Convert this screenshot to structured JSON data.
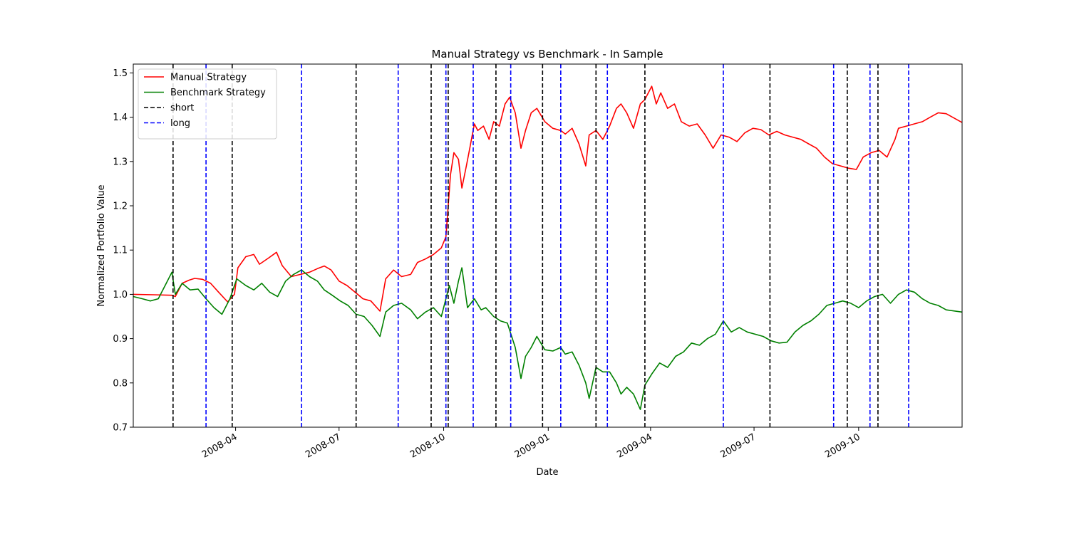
{
  "chart_data": {
    "type": "line",
    "title": "Manual Strategy vs Benchmark - In Sample",
    "xlabel": "Date",
    "ylabel": "Normalized Portfolio Value",
    "xlim": [
      "2008-01-02",
      "2009-12-31"
    ],
    "ylim": [
      0.7,
      1.52
    ],
    "grid": false,
    "legend_position": "top-left",
    "x_ticks": [
      "2008-04",
      "2008-07",
      "2008-10",
      "2009-01",
      "2009-04",
      "2009-07",
      "2009-10"
    ],
    "y_ticks": [
      "0.7",
      "0.8",
      "0.9",
      "1.0",
      "1.1",
      "1.2",
      "1.3",
      "1.4",
      "1.5"
    ],
    "series": [
      {
        "name": "Manual Strategy",
        "color": "#ff0000",
        "style": "solid",
        "points": [
          [
            "2008-01-02",
            1.0
          ],
          [
            "2008-01-20",
            0.999
          ],
          [
            "2008-02-05",
            0.998
          ],
          [
            "2008-02-08",
            0.995
          ],
          [
            "2008-02-14",
            1.025
          ],
          [
            "2008-02-20",
            1.032
          ],
          [
            "2008-02-25",
            1.036
          ],
          [
            "2008-03-03",
            1.034
          ],
          [
            "2008-03-10",
            1.025
          ],
          [
            "2008-03-17",
            1.005
          ],
          [
            "2008-03-25",
            0.983
          ],
          [
            "2008-03-31",
            1.0
          ],
          [
            "2008-04-03",
            1.06
          ],
          [
            "2008-04-10",
            1.085
          ],
          [
            "2008-04-17",
            1.09
          ],
          [
            "2008-04-22",
            1.068
          ],
          [
            "2008-04-30",
            1.082
          ],
          [
            "2008-05-07",
            1.095
          ],
          [
            "2008-05-12",
            1.065
          ],
          [
            "2008-05-20",
            1.04
          ],
          [
            "2008-05-28",
            1.045
          ],
          [
            "2008-06-05",
            1.05
          ],
          [
            "2008-06-12",
            1.058
          ],
          [
            "2008-06-18",
            1.064
          ],
          [
            "2008-06-24",
            1.055
          ],
          [
            "2008-07-01",
            1.03
          ],
          [
            "2008-07-08",
            1.02
          ],
          [
            "2008-07-15",
            1.005
          ],
          [
            "2008-07-22",
            0.99
          ],
          [
            "2008-07-29",
            0.985
          ],
          [
            "2008-08-06",
            0.962
          ],
          [
            "2008-08-11",
            1.035
          ],
          [
            "2008-08-18",
            1.055
          ],
          [
            "2008-08-25",
            1.04
          ],
          [
            "2008-09-02",
            1.045
          ],
          [
            "2008-09-08",
            1.072
          ],
          [
            "2008-09-15",
            1.08
          ],
          [
            "2008-09-22",
            1.09
          ],
          [
            "2008-09-29",
            1.105
          ],
          [
            "2008-10-03",
            1.13
          ],
          [
            "2008-10-07",
            1.27
          ],
          [
            "2008-10-10",
            1.32
          ],
          [
            "2008-10-14",
            1.305
          ],
          [
            "2008-10-17",
            1.24
          ],
          [
            "2008-10-21",
            1.29
          ],
          [
            "2008-10-24",
            1.33
          ],
          [
            "2008-10-28",
            1.385
          ],
          [
            "2008-10-31",
            1.37
          ],
          [
            "2008-11-05",
            1.38
          ],
          [
            "2008-11-10",
            1.35
          ],
          [
            "2008-11-14",
            1.39
          ],
          [
            "2008-11-19",
            1.38
          ],
          [
            "2008-11-24",
            1.43
          ],
          [
            "2008-11-28",
            1.445
          ],
          [
            "2008-12-03",
            1.41
          ],
          [
            "2008-12-08",
            1.33
          ],
          [
            "2008-12-12",
            1.37
          ],
          [
            "2008-12-17",
            1.41
          ],
          [
            "2008-12-22",
            1.42
          ],
          [
            "2008-12-29",
            1.39
          ],
          [
            "2009-01-05",
            1.375
          ],
          [
            "2009-01-12",
            1.37
          ],
          [
            "2009-01-16",
            1.362
          ],
          [
            "2009-01-22",
            1.375
          ],
          [
            "2009-01-28",
            1.34
          ],
          [
            "2009-02-03",
            1.29
          ],
          [
            "2009-02-06",
            1.36
          ],
          [
            "2009-02-12",
            1.37
          ],
          [
            "2009-02-18",
            1.35
          ],
          [
            "2009-02-24",
            1.38
          ],
          [
            "2009-03-02",
            1.42
          ],
          [
            "2009-03-06",
            1.43
          ],
          [
            "2009-03-11",
            1.41
          ],
          [
            "2009-03-17",
            1.375
          ],
          [
            "2009-03-23",
            1.43
          ],
          [
            "2009-03-27",
            1.44
          ],
          [
            "2009-04-02",
            1.47
          ],
          [
            "2009-04-06",
            1.43
          ],
          [
            "2009-04-10",
            1.455
          ],
          [
            "2009-04-16",
            1.42
          ],
          [
            "2009-04-22",
            1.43
          ],
          [
            "2009-04-28",
            1.39
          ],
          [
            "2009-05-05",
            1.38
          ],
          [
            "2009-05-12",
            1.385
          ],
          [
            "2009-05-19",
            1.36
          ],
          [
            "2009-05-26",
            1.33
          ],
          [
            "2009-06-02",
            1.36
          ],
          [
            "2009-06-09",
            1.355
          ],
          [
            "2009-06-16",
            1.345
          ],
          [
            "2009-06-23",
            1.365
          ],
          [
            "2009-06-30",
            1.375
          ],
          [
            "2009-07-07",
            1.372
          ],
          [
            "2009-07-14",
            1.36
          ],
          [
            "2009-07-21",
            1.368
          ],
          [
            "2009-07-28",
            1.36
          ],
          [
            "2009-08-04",
            1.355
          ],
          [
            "2009-08-11",
            1.35
          ],
          [
            "2009-08-18",
            1.34
          ],
          [
            "2009-08-25",
            1.33
          ],
          [
            "2009-09-01",
            1.31
          ],
          [
            "2009-09-08",
            1.295
          ],
          [
            "2009-09-15",
            1.29
          ],
          [
            "2009-09-22",
            1.285
          ],
          [
            "2009-09-29",
            1.282
          ],
          [
            "2009-10-05",
            1.31
          ],
          [
            "2009-10-12",
            1.32
          ],
          [
            "2009-10-19",
            1.325
          ],
          [
            "2009-10-26",
            1.31
          ],
          [
            "2009-11-02",
            1.35
          ],
          [
            "2009-11-05",
            1.375
          ],
          [
            "2009-11-12",
            1.38
          ],
          [
            "2009-11-19",
            1.385
          ],
          [
            "2009-11-26",
            1.39
          ],
          [
            "2009-12-03",
            1.4
          ],
          [
            "2009-12-10",
            1.41
          ],
          [
            "2009-12-17",
            1.408
          ],
          [
            "2009-12-31",
            1.388
          ]
        ]
      },
      {
        "name": "Benchmark Strategy",
        "color": "#008000",
        "style": "solid",
        "points": [
          [
            "2008-01-02",
            0.995
          ],
          [
            "2008-01-10",
            0.99
          ],
          [
            "2008-01-17",
            0.985
          ],
          [
            "2008-01-24",
            0.99
          ],
          [
            "2008-01-31",
            1.025
          ],
          [
            "2008-02-05",
            1.05
          ],
          [
            "2008-02-08",
            1.0
          ],
          [
            "2008-02-14",
            1.025
          ],
          [
            "2008-02-21",
            1.01
          ],
          [
            "2008-02-28",
            1.012
          ],
          [
            "2008-03-06",
            0.99
          ],
          [
            "2008-03-13",
            0.97
          ],
          [
            "2008-03-20",
            0.955
          ],
          [
            "2008-03-27",
            0.99
          ],
          [
            "2008-04-02",
            1.035
          ],
          [
            "2008-04-10",
            1.02
          ],
          [
            "2008-04-17",
            1.01
          ],
          [
            "2008-04-24",
            1.025
          ],
          [
            "2008-05-01",
            1.005
          ],
          [
            "2008-05-08",
            0.995
          ],
          [
            "2008-05-15",
            1.03
          ],
          [
            "2008-05-22",
            1.045
          ],
          [
            "2008-05-29",
            1.055
          ],
          [
            "2008-06-05",
            1.04
          ],
          [
            "2008-06-12",
            1.03
          ],
          [
            "2008-06-18",
            1.01
          ],
          [
            "2008-06-25",
            0.998
          ],
          [
            "2008-07-02",
            0.985
          ],
          [
            "2008-07-09",
            0.975
          ],
          [
            "2008-07-16",
            0.955
          ],
          [
            "2008-07-23",
            0.95
          ],
          [
            "2008-07-30",
            0.93
          ],
          [
            "2008-08-06",
            0.905
          ],
          [
            "2008-08-11",
            0.96
          ],
          [
            "2008-08-18",
            0.975
          ],
          [
            "2008-08-25",
            0.98
          ],
          [
            "2008-09-02",
            0.965
          ],
          [
            "2008-09-08",
            0.945
          ],
          [
            "2008-09-15",
            0.96
          ],
          [
            "2008-09-22",
            0.97
          ],
          [
            "2008-09-29",
            0.95
          ],
          [
            "2008-10-06",
            1.02
          ],
          [
            "2008-10-10",
            0.98
          ],
          [
            "2008-10-14",
            1.03
          ],
          [
            "2008-10-17",
            1.06
          ],
          [
            "2008-10-22",
            0.97
          ],
          [
            "2008-10-28",
            0.99
          ],
          [
            "2008-11-03",
            0.965
          ],
          [
            "2008-11-07",
            0.97
          ],
          [
            "2008-11-14",
            0.95
          ],
          [
            "2008-11-20",
            0.94
          ],
          [
            "2008-11-26",
            0.935
          ],
          [
            "2008-12-03",
            0.88
          ],
          [
            "2008-12-08",
            0.81
          ],
          [
            "2008-12-12",
            0.86
          ],
          [
            "2008-12-17",
            0.88
          ],
          [
            "2008-12-22",
            0.905
          ],
          [
            "2008-12-29",
            0.875
          ],
          [
            "2009-01-05",
            0.872
          ],
          [
            "2009-01-12",
            0.88
          ],
          [
            "2009-01-16",
            0.865
          ],
          [
            "2009-01-22",
            0.87
          ],
          [
            "2009-01-28",
            0.84
          ],
          [
            "2009-02-03",
            0.8
          ],
          [
            "2009-02-06",
            0.765
          ],
          [
            "2009-02-12",
            0.835
          ],
          [
            "2009-02-18",
            0.825
          ],
          [
            "2009-02-24",
            0.825
          ],
          [
            "2009-03-02",
            0.8
          ],
          [
            "2009-03-06",
            0.775
          ],
          [
            "2009-03-11",
            0.79
          ],
          [
            "2009-03-17",
            0.775
          ],
          [
            "2009-03-23",
            0.74
          ],
          [
            "2009-03-27",
            0.795
          ],
          [
            "2009-04-02",
            0.82
          ],
          [
            "2009-04-09",
            0.845
          ],
          [
            "2009-04-16",
            0.835
          ],
          [
            "2009-04-23",
            0.86
          ],
          [
            "2009-04-30",
            0.87
          ],
          [
            "2009-05-07",
            0.89
          ],
          [
            "2009-05-14",
            0.885
          ],
          [
            "2009-05-21",
            0.9
          ],
          [
            "2009-05-28",
            0.91
          ],
          [
            "2009-06-04",
            0.94
          ],
          [
            "2009-06-11",
            0.915
          ],
          [
            "2009-06-18",
            0.925
          ],
          [
            "2009-06-25",
            0.915
          ],
          [
            "2009-07-02",
            0.91
          ],
          [
            "2009-07-09",
            0.905
          ],
          [
            "2009-07-16",
            0.895
          ],
          [
            "2009-07-23",
            0.89
          ],
          [
            "2009-07-30",
            0.892
          ],
          [
            "2009-08-06",
            0.915
          ],
          [
            "2009-08-13",
            0.93
          ],
          [
            "2009-08-20",
            0.94
          ],
          [
            "2009-08-27",
            0.955
          ],
          [
            "2009-09-03",
            0.975
          ],
          [
            "2009-09-10",
            0.98
          ],
          [
            "2009-09-17",
            0.985
          ],
          [
            "2009-09-24",
            0.98
          ],
          [
            "2009-10-01",
            0.97
          ],
          [
            "2009-10-08",
            0.985
          ],
          [
            "2009-10-15",
            0.995
          ],
          [
            "2009-10-22",
            1.0
          ],
          [
            "2009-10-29",
            0.98
          ],
          [
            "2009-11-05",
            1.0
          ],
          [
            "2009-11-12",
            1.01
          ],
          [
            "2009-11-19",
            1.005
          ],
          [
            "2009-11-26",
            0.99
          ],
          [
            "2009-12-03",
            0.98
          ],
          [
            "2009-12-10",
            0.975
          ],
          [
            "2009-12-17",
            0.965
          ],
          [
            "2009-12-31",
            0.96
          ]
        ]
      }
    ],
    "vlines": [
      {
        "name": "short",
        "color": "#000000",
        "style": "dashed",
        "dates": [
          "2008-02-06",
          "2008-03-29",
          "2008-07-16",
          "2008-09-20",
          "2008-10-05",
          "2008-11-16",
          "2008-12-27",
          "2009-02-12",
          "2009-03-27",
          "2009-07-15",
          "2009-09-21",
          "2009-10-18"
        ]
      },
      {
        "name": "long",
        "color": "#0000ff",
        "style": "dashed",
        "dates": [
          "2008-03-06",
          "2008-05-29",
          "2008-08-22",
          "2008-10-03",
          "2008-10-27",
          "2008-11-29",
          "2009-01-12",
          "2009-02-22",
          "2009-06-04",
          "2009-09-09",
          "2009-10-11",
          "2009-11-14"
        ]
      }
    ]
  }
}
